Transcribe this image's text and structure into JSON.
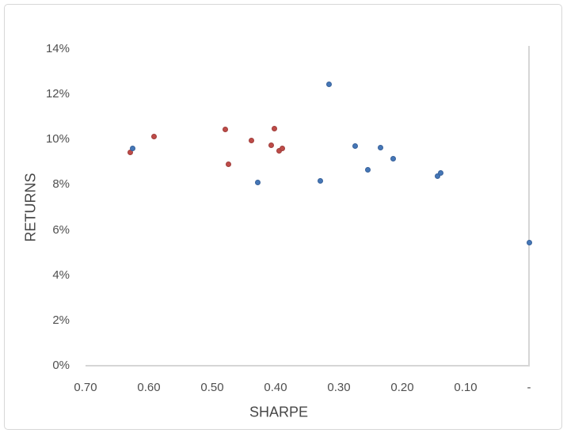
{
  "colors": {
    "background": "#ffffff",
    "frame_border": "#d7d7d7",
    "axis_line": "#d6d6d6",
    "tick_text": "#4f4f4f",
    "title_text": "#474747"
  },
  "chart_data": {
    "type": "scatter",
    "title": "",
    "xlabel": "SHARPE",
    "ylabel": "RETURNS",
    "grid": false,
    "legend": "none",
    "x_axis": {
      "min": 0.0,
      "max": 0.7,
      "reversed": true,
      "tick_values": [
        0.7,
        0.6,
        0.5,
        0.4,
        0.3,
        0.2,
        0.1,
        0.0
      ],
      "tick_labels": [
        "0.70",
        "0.60",
        "0.50",
        "0.40",
        "0.30",
        "0.20",
        "0.10",
        "-"
      ]
    },
    "y_axis": {
      "min": 0,
      "max": 14,
      "unit": "%",
      "tick_values": [
        14,
        12,
        10,
        8,
        6,
        4,
        2,
        0
      ],
      "tick_labels": [
        "14%",
        "12%",
        "10%",
        "8%",
        "6%",
        "4%",
        "2%",
        "0%"
      ]
    },
    "series": [
      {
        "name": "red-series",
        "color": "#be4b48",
        "border_color": "#a03f3c",
        "points": [
          [
            0.629,
            9.45
          ],
          [
            0.592,
            10.15
          ],
          [
            0.48,
            10.45
          ],
          [
            0.475,
            8.9
          ],
          [
            0.438,
            9.95
          ],
          [
            0.402,
            10.5
          ],
          [
            0.407,
            9.75
          ],
          [
            0.395,
            9.5
          ],
          [
            0.389,
            9.62
          ]
        ]
      },
      {
        "name": "blue-series",
        "color": "#4577b7",
        "border_color": "#38619a",
        "points": [
          [
            0.626,
            9.6
          ],
          [
            0.428,
            8.12
          ],
          [
            0.329,
            8.19
          ],
          [
            0.316,
            12.43
          ],
          [
            0.274,
            9.7
          ],
          [
            0.255,
            8.65
          ],
          [
            0.234,
            9.63
          ],
          [
            0.214,
            9.17
          ],
          [
            0.145,
            8.4
          ],
          [
            0.139,
            8.54
          ],
          [
            0.0,
            5.43
          ]
        ]
      }
    ]
  }
}
